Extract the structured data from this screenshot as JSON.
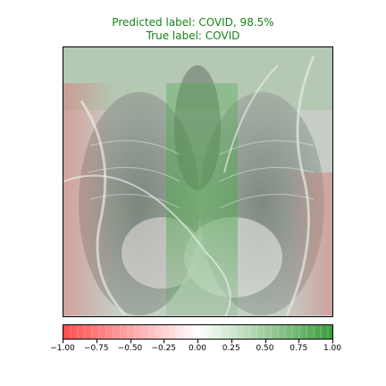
{
  "title": {
    "predicted": "Predicted label: COVID, 98.5%",
    "true_label": "True label: COVID",
    "color": "#1a7f1a"
  },
  "image": {
    "description_icon": "chest-xray-heatmap-image"
  },
  "colorbar": {
    "min": -1.0,
    "max": 1.0,
    "negative_color": "#ff4d4d",
    "neutral_color": "#ffffff",
    "positive_color": "#3a9a3a",
    "tick_labels": [
      "−1.00",
      "−0.75",
      "−0.50",
      "−0.25",
      "0.00",
      "0.25",
      "0.50",
      "0.75",
      "1.00"
    ],
    "tick_values": [
      -1.0,
      -0.75,
      -0.5,
      -0.25,
      0.0,
      0.25,
      0.5,
      0.75,
      1.0
    ]
  }
}
